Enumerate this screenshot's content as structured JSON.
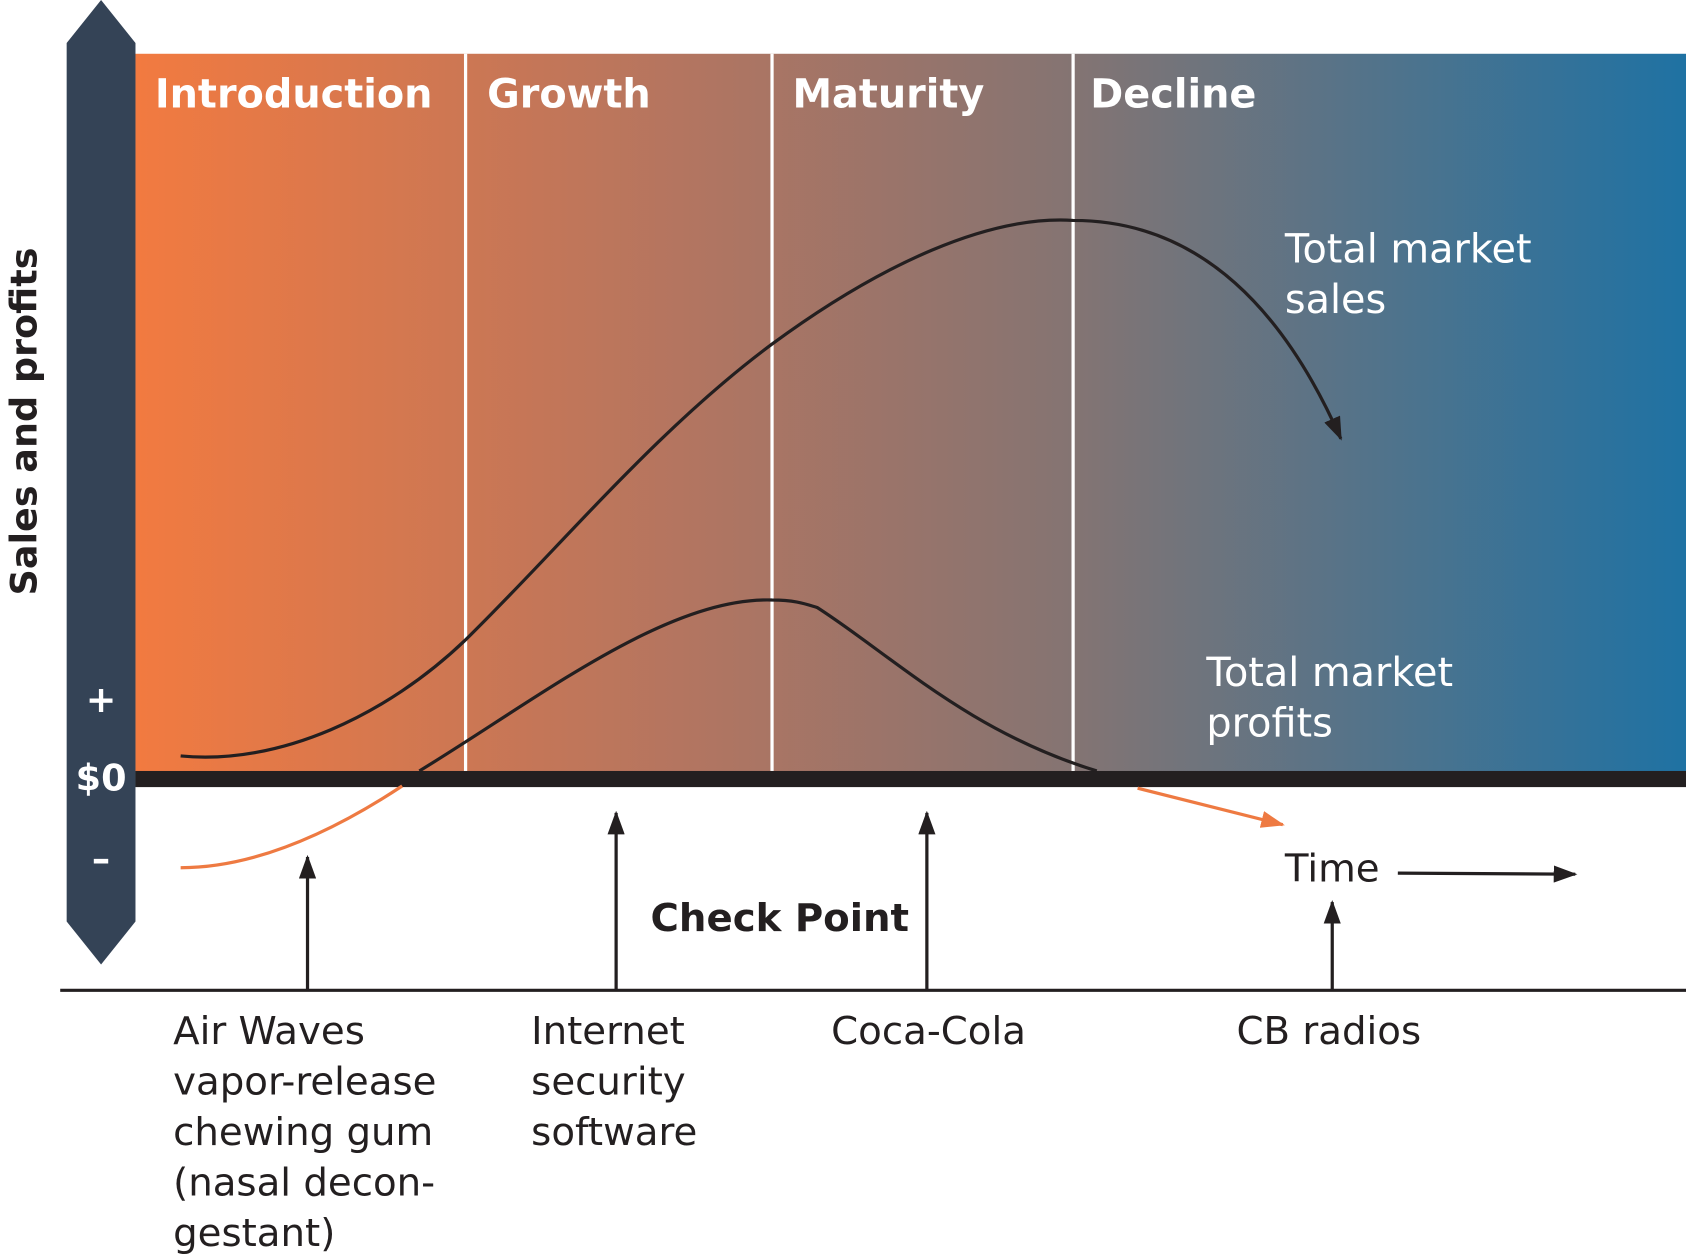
{
  "axis": {
    "label": "Sales and profits",
    "plus": "+",
    "zero": "$0",
    "minus": "–"
  },
  "stages": [
    {
      "label": "Introduction"
    },
    {
      "label": "Growth"
    },
    {
      "label": "Maturity"
    },
    {
      "label": "Decline"
    }
  ],
  "curves": [
    {
      "lines": [
        "Total market",
        "sales"
      ]
    },
    {
      "lines": [
        "Total market",
        "profits"
      ]
    }
  ],
  "time_label": "Time",
  "check_point": "Check Point",
  "examples": [
    {
      "lines": [
        "Air Waves",
        "vapor-release",
        "chewing gum",
        "(nasal decon-",
        "gestant)"
      ]
    },
    {
      "lines": [
        "Internet",
        "security",
        "software"
      ]
    },
    {
      "lines": [
        "Coca-Cola"
      ]
    },
    {
      "lines": [
        "CB radios"
      ]
    }
  ]
}
